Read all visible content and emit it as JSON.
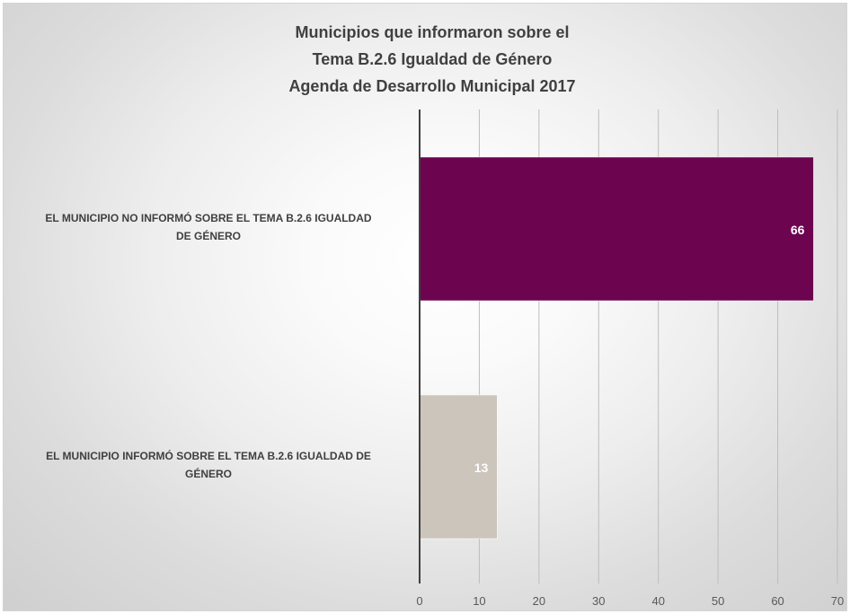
{
  "chart_data": {
    "type": "bar",
    "orientation": "horizontal",
    "title": [
      "Municipios que informaron sobre el",
      "Tema  B.2.6 Igualdad de Género",
      "Agenda de Desarrollo Municipal 2017"
    ],
    "categories": [
      [
        "EL MUNICIPIO NO INFORMÓ SOBRE EL TEMA B.2.6 IGUALDAD",
        "DE GÉNERO"
      ],
      [
        "EL MUNICIPIO INFORMÓ SOBRE EL TEMA B.2.6 IGUALDAD DE",
        "GÉNERO"
      ]
    ],
    "values": [
      66,
      13
    ],
    "data_labels": [
      "66",
      "13"
    ],
    "bar_colors": [
      "#6d0450",
      "#cbc5bb"
    ],
    "data_label_color": "#ffffff",
    "xlim": [
      0,
      70
    ],
    "x_ticks": [
      0,
      10,
      20,
      30,
      40,
      50,
      60,
      70
    ],
    "x_tick_labels": [
      "0",
      "10",
      "20",
      "30",
      "40",
      "50",
      "60",
      "70"
    ],
    "grid": true,
    "legend": "none"
  }
}
